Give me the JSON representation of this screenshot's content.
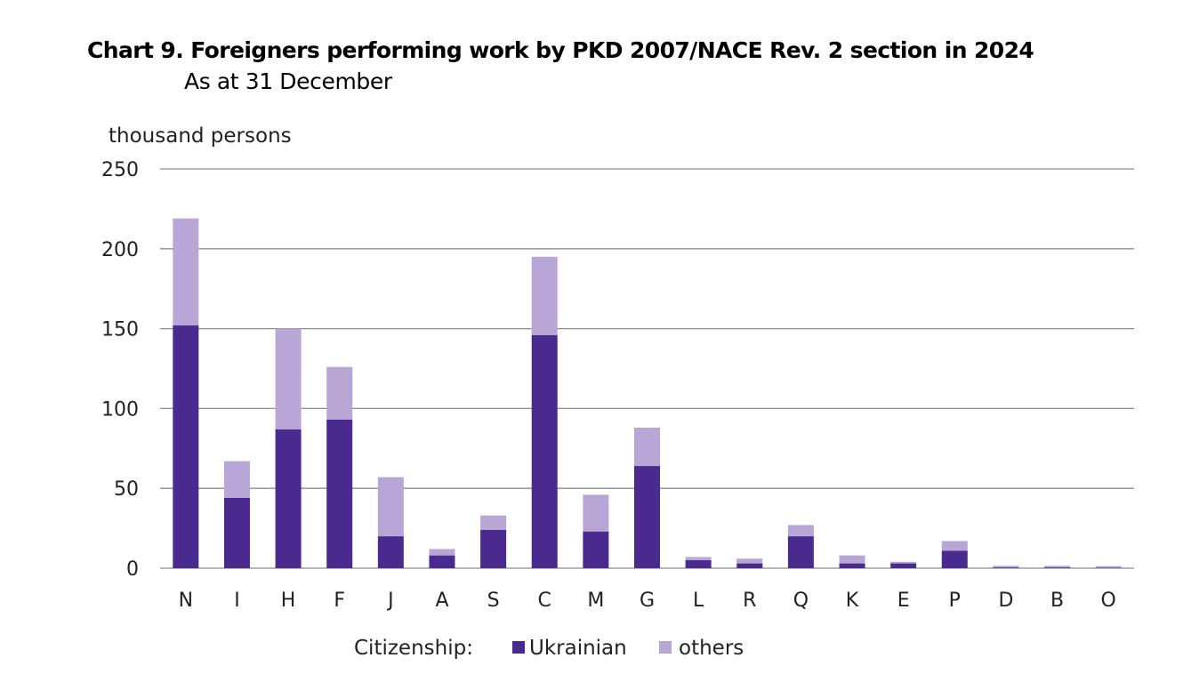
{
  "title": "Chart 9. Foreigners performing work by PKD 2007/NACE Rev. 2 section in 2024",
  "subtitle": "As at 31 December",
  "colors": {
    "ukrainian": "#4b2a8f",
    "others": "#b8a6d6",
    "grid": "#8c8c8c"
  },
  "chart_data": {
    "type": "bar",
    "stacked": true,
    "title": "Chart 9. Foreigners performing work by PKD 2007/NACE Rev. 2 section in 2024",
    "subtitle": "As at 31 December",
    "ylabel": "thousand persons",
    "xlabel": "",
    "ylim": [
      0,
      250
    ],
    "yticks": [
      0,
      50,
      100,
      150,
      200,
      250
    ],
    "grid": true,
    "categories": [
      "N",
      "I",
      "H",
      "F",
      "J",
      "A",
      "S",
      "C",
      "M",
      "G",
      "L",
      "R",
      "Q",
      "K",
      "E",
      "P",
      "D",
      "B",
      "O"
    ],
    "series": [
      {
        "name": "Ukrainian",
        "values": [
          152,
          44,
          87,
          93,
          20,
          8,
          24,
          146,
          23,
          64,
          5,
          3,
          20,
          3,
          3,
          11,
          0.5,
          0.5,
          0.3
        ]
      },
      {
        "name": "others",
        "values": [
          67,
          23,
          63,
          33,
          37,
          4,
          9,
          49,
          23,
          24,
          2,
          3,
          7,
          5,
          1,
          6,
          1,
          1,
          1
        ]
      }
    ],
    "legend": {
      "title": "Citizenship:",
      "placement": "bottom"
    }
  }
}
